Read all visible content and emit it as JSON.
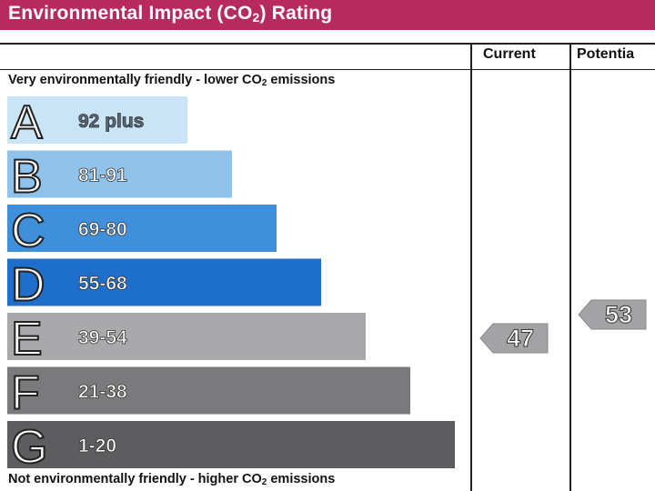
{
  "header": {
    "title_prefix": "Environmental Impact (CO",
    "title_sub": "2",
    "title_suffix": ") Rating",
    "background": "#b62a5d"
  },
  "columns": {
    "current": "Current",
    "potential": "Potentia"
  },
  "captions": {
    "top_prefix": "Very environmentally friendly - lower CO",
    "top_sub": "2",
    "top_suffix": " emissions",
    "bottom_prefix": "Not environmentally friendly - higher CO",
    "bottom_sub": "2",
    "bottom_suffix": " emissions"
  },
  "chart_data": {
    "type": "bar",
    "categories": [
      "A",
      "B",
      "C",
      "D",
      "E",
      "F",
      "G"
    ],
    "bands": [
      {
        "letter": "A",
        "range": "92 plus",
        "color": "#c9e4f6",
        "text_color": "#5a6a78"
      },
      {
        "letter": "B",
        "range": "81-91",
        "color": "#8fc3ec",
        "text_color": "#ffffff"
      },
      {
        "letter": "C",
        "range": "69-80",
        "color": "#3f8fdb",
        "text_color": "#ffffff"
      },
      {
        "letter": "D",
        "range": "55-68",
        "color": "#1e6fcb",
        "text_color": "#ffffff"
      },
      {
        "letter": "E",
        "range": "39-54",
        "color": "#a9a9ab",
        "text_color": "#ffffff"
      },
      {
        "letter": "F",
        "range": "21-38",
        "color": "#7a7a7c",
        "text_color": "#ffffff"
      },
      {
        "letter": "G",
        "range": "1-20",
        "color": "#5d5d5f",
        "text_color": "#ffffff"
      }
    ],
    "current": {
      "value": 47,
      "band": "E",
      "label": "47"
    },
    "potential": {
      "value": 53,
      "band": "E",
      "label": "53"
    },
    "marker_color": "#a3a3a5"
  }
}
